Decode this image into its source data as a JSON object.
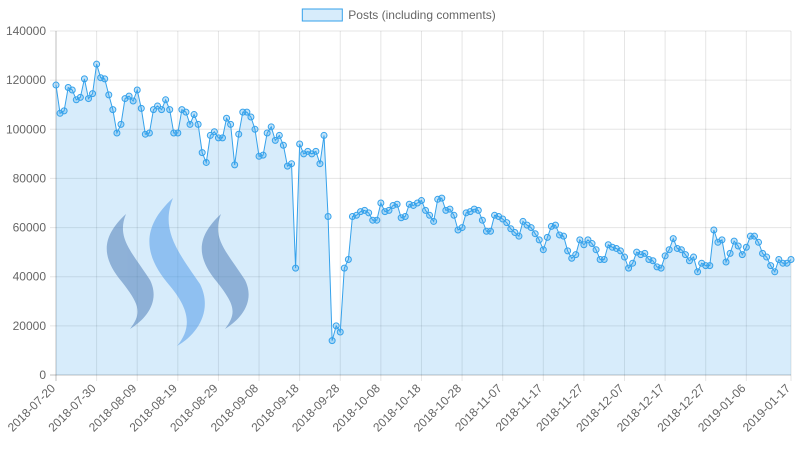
{
  "chart_data": {
    "type": "area",
    "legend": {
      "position": "top",
      "entries": [
        {
          "label": "Posts (including comments)",
          "color": "#36a2eb",
          "fill": "rgba(54,162,235,0.2)"
        }
      ]
    },
    "grid": true,
    "ylim": [
      0,
      140000
    ],
    "yticks": [
      "0",
      "20000",
      "40000",
      "60000",
      "80000",
      "100000",
      "120000",
      "140000"
    ],
    "xlim": [
      "2018-07-20",
      "2019-01-17"
    ],
    "xticks": [
      "2018-07-20",
      "2018-07-30",
      "2018-08-09",
      "2018-08-19",
      "2018-08-29",
      "2018-09-08",
      "2018-09-18",
      "2018-09-28",
      "2018-10-08",
      "2018-10-18",
      "2018-10-28",
      "2018-11-07",
      "2018-11-17",
      "2018-11-27",
      "2018-12-07",
      "2018-12-17",
      "2018-12-27",
      "2019-01-06",
      "2019-01-17"
    ],
    "start_date": "2018-07-20",
    "series": [
      {
        "name": "Posts (including comments)",
        "values": [
          118000,
          106500,
          107500,
          117000,
          116000,
          112000,
          113000,
          120500,
          112500,
          114500,
          126500,
          121000,
          120500,
          114000,
          108000,
          98500,
          102000,
          112500,
          113500,
          111500,
          116000,
          108500,
          98000,
          98500,
          108000,
          109500,
          108000,
          112000,
          108000,
          98500,
          98500,
          108000,
          107000,
          102000,
          106000,
          102000,
          90500,
          86500,
          97500,
          99000,
          96500,
          96500,
          104500,
          102000,
          85500,
          98000,
          107000,
          107000,
          105000,
          100000,
          89000,
          89500,
          98500,
          101000,
          95500,
          97500,
          93500,
          85000,
          86000,
          43500,
          94000,
          90000,
          91000,
          90000,
          91000,
          86000,
          97500,
          64500,
          14000,
          20000,
          17500,
          43500,
          47000,
          64500,
          65000,
          66500,
          67000,
          66000,
          63000,
          63000,
          70000,
          66500,
          67000,
          69000,
          69500,
          64000,
          64500,
          69500,
          69000,
          70000,
          71000,
          67000,
          65000,
          62500,
          71500,
          72000,
          67000,
          67500,
          65000,
          59000,
          60000,
          66000,
          66500,
          67500,
          67000,
          63000,
          58500,
          58500,
          65000,
          64500,
          63500,
          62000,
          59500,
          58000,
          56500,
          62500,
          61000,
          60000,
          57500,
          55000,
          51000,
          56000,
          60500,
          61000,
          57000,
          56500,
          50500,
          47500,
          49000,
          55000,
          53000,
          55000,
          53500,
          51000,
          47000,
          47000,
          53000,
          52000,
          51500,
          50500,
          48000,
          43500,
          45500,
          50000,
          49000,
          49500,
          47000,
          46500,
          44000,
          43500,
          48500,
          51000,
          55500,
          51500,
          51000,
          49000,
          46500,
          48000,
          42000,
          45500,
          44500,
          44500,
          59000,
          54000,
          55000,
          46000,
          49500,
          54500,
          52500,
          49000,
          52000,
          56500,
          56500,
          54000,
          49500,
          48000,
          44500,
          42000,
          47000,
          45500,
          45500,
          47000
        ]
      }
    ]
  }
}
